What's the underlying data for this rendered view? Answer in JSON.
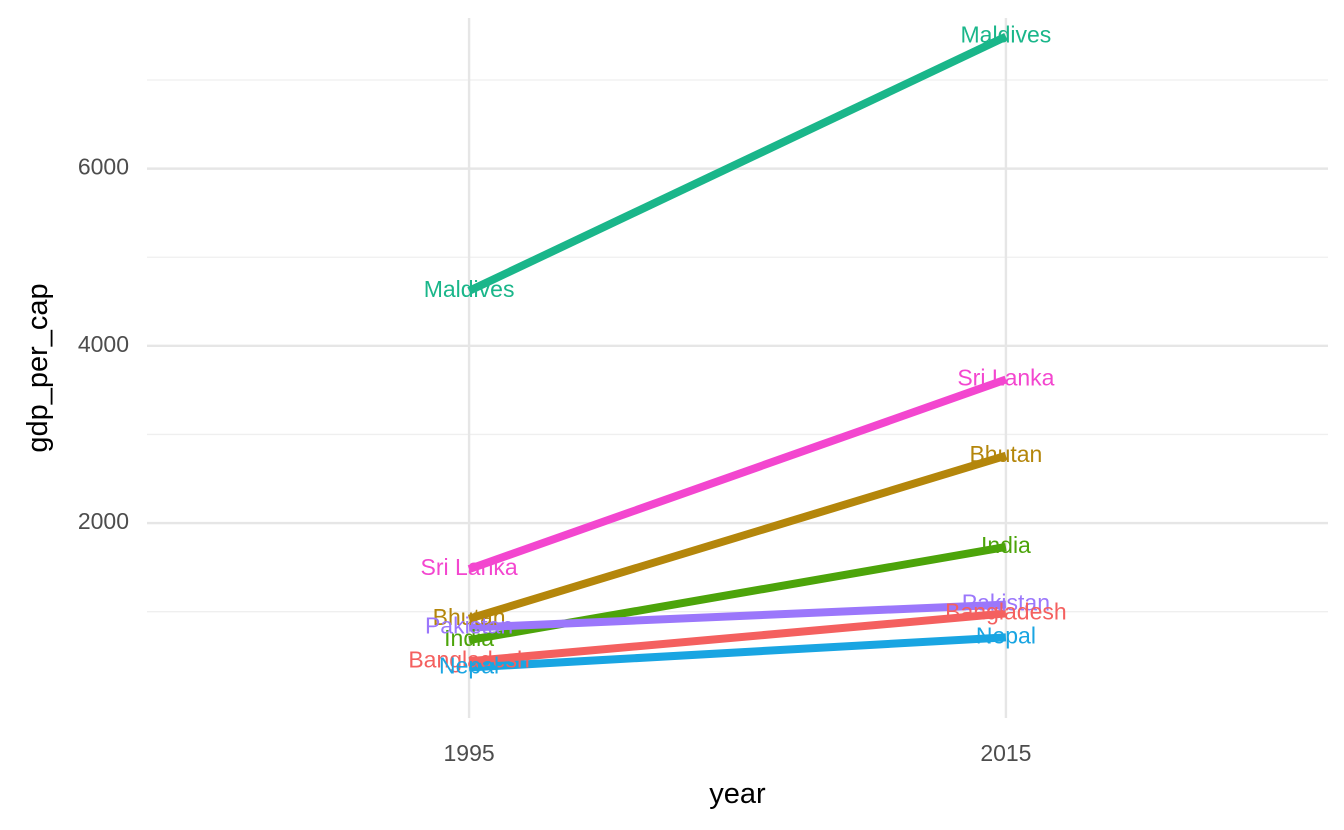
{
  "chart_data": {
    "type": "line",
    "xlabel": "year",
    "ylabel": "gdp_per_cap",
    "x": [
      1995,
      2015
    ],
    "x_ticks": [
      "1995",
      "2015"
    ],
    "y_ticks": [
      "2000",
      "4000",
      "6000"
    ],
    "xlim": [
      1983,
      2027
    ],
    "ylim": [
      -200,
      7700
    ],
    "grid": true,
    "legend": "none",
    "series": [
      {
        "name": "Maldives",
        "color": "#1ab68a",
        "values": [
          4620,
          7490
        ]
      },
      {
        "name": "Sri Lanka",
        "color": "#f346cf",
        "values": [
          1480,
          3620
        ]
      },
      {
        "name": "Bhutan",
        "color": "#b4860b",
        "values": [
          920,
          2760
        ]
      },
      {
        "name": "India",
        "color": "#4ca40a",
        "values": [
          680,
          1730
        ]
      },
      {
        "name": "Pakistan",
        "color": "#9b77fb",
        "values": [
          820,
          1080
        ]
      },
      {
        "name": "Bangladesh",
        "color": "#f4605f",
        "values": [
          440,
          980
        ]
      },
      {
        "name": "Nepal",
        "color": "#19a5e2",
        "values": [
          370,
          710
        ]
      }
    ]
  }
}
